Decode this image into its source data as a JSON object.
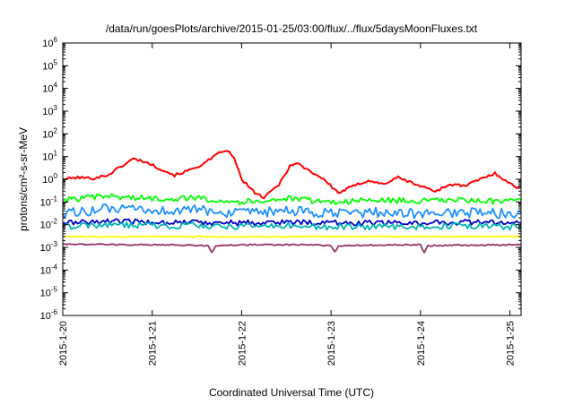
{
  "chart_data": {
    "type": "line",
    "title": "/data/run/goesPlots/archive/2015-01-25/03:00/flux/../flux/5daysMoonFluxes.txt",
    "xlabel": "Coordinated Universal Time (UTC)",
    "ylabel": "protons/cm²-s-sr-MeV",
    "yscale": "log",
    "ylim": [
      1e-06,
      1000000.0
    ],
    "xlim": [
      "2015-01-20T00:00",
      "2015-01-25T03:00"
    ],
    "grid": false,
    "legend": "none",
    "y_tick_labels": [
      {
        "value": 1e-06,
        "base": "10",
        "exp": "-6"
      },
      {
        "value": 1e-05,
        "base": "10",
        "exp": "-5"
      },
      {
        "value": 0.0001,
        "base": "10",
        "exp": "-4"
      },
      {
        "value": 0.001,
        "base": "10",
        "exp": "-3"
      },
      {
        "value": 0.01,
        "base": "10",
        "exp": "-2"
      },
      {
        "value": 0.1,
        "base": "10",
        "exp": "-1"
      },
      {
        "value": 1,
        "base": "10",
        "exp": "0"
      },
      {
        "value": 10,
        "base": "10",
        "exp": "1"
      },
      {
        "value": 100,
        "base": "10",
        "exp": "2"
      },
      {
        "value": 1000,
        "base": "10",
        "exp": "3"
      },
      {
        "value": 10000,
        "base": "10",
        "exp": "4"
      },
      {
        "value": 100000,
        "base": "10",
        "exp": "5"
      },
      {
        "value": 1000000,
        "base": "10",
        "exp": "6"
      }
    ],
    "x_tick_labels": [
      {
        "value": "2015-01-20T00:00",
        "label": "2015-1-20"
      },
      {
        "value": "2015-01-21T00:00",
        "label": "2015-1-21"
      },
      {
        "value": "2015-01-22T00:00",
        "label": "2015-1-22"
      },
      {
        "value": "2015-01-23T00:00",
        "label": "2015-1-23"
      },
      {
        "value": "2015-01-24T00:00",
        "label": "2015-1-24"
      },
      {
        "value": "2015-01-25T00:00",
        "label": "2015-1-25"
      }
    ],
    "series": [
      {
        "color": "#ff0000",
        "points": [
          [
            "2015-01-20T00:00",
            1.0
          ],
          [
            "2015-01-20T04:00",
            1.2
          ],
          [
            "2015-01-20T08:00",
            1.1
          ],
          [
            "2015-01-20T12:00",
            1.5
          ],
          [
            "2015-01-20T16:00",
            4.0
          ],
          [
            "2015-01-20T19:00",
            8.0
          ],
          [
            "2015-01-20T22:00",
            6.0
          ],
          [
            "2015-01-21T02:00",
            3.0
          ],
          [
            "2015-01-21T06:00",
            1.5
          ],
          [
            "2015-01-21T10:00",
            2.5
          ],
          [
            "2015-01-21T14:00",
            5.0
          ],
          [
            "2015-01-21T18:00",
            14.0
          ],
          [
            "2015-01-21T20:00",
            20.0
          ],
          [
            "2015-01-21T22:00",
            8.0
          ],
          [
            "2015-01-22T00:00",
            1.0
          ],
          [
            "2015-01-22T03:00",
            0.3
          ],
          [
            "2015-01-22T06:00",
            0.15
          ],
          [
            "2015-01-22T10:00",
            0.6
          ],
          [
            "2015-01-22T13:00",
            4.0
          ],
          [
            "2015-01-22T15:00",
            5.0
          ],
          [
            "2015-01-22T18:00",
            2.5
          ],
          [
            "2015-01-22T22:00",
            1.0
          ],
          [
            "2015-01-23T02:00",
            0.25
          ],
          [
            "2015-01-23T06:00",
            0.5
          ],
          [
            "2015-01-23T10:00",
            0.9
          ],
          [
            "2015-01-23T14:00",
            0.6
          ],
          [
            "2015-01-23T18:00",
            1.2
          ],
          [
            "2015-01-24T00:00",
            0.5
          ],
          [
            "2015-01-24T04:00",
            0.3
          ],
          [
            "2015-01-24T08:00",
            0.6
          ],
          [
            "2015-01-24T12:00",
            0.5
          ],
          [
            "2015-01-24T16:00",
            1.0
          ],
          [
            "2015-01-24T20:00",
            1.8
          ],
          [
            "2015-01-25T00:00",
            0.7
          ],
          [
            "2015-01-25T01:30",
            0.4
          ],
          [
            "2015-01-25T03:00",
            0.5
          ]
        ]
      },
      {
        "color": "#00ff00",
        "points": [
          [
            "2015-01-20T00:00",
            0.12
          ],
          [
            "2015-01-20T12:00",
            0.18
          ],
          [
            "2015-01-21T00:00",
            0.14
          ],
          [
            "2015-01-21T12:00",
            0.15
          ],
          [
            "2015-01-22T00:00",
            0.1
          ],
          [
            "2015-01-22T12:00",
            0.14
          ],
          [
            "2015-01-23T00:00",
            0.1
          ],
          [
            "2015-01-23T12:00",
            0.12
          ],
          [
            "2015-01-24T00:00",
            0.11
          ],
          [
            "2015-01-24T12:00",
            0.12
          ],
          [
            "2015-01-25T00:00",
            0.1
          ],
          [
            "2015-01-25T03:00",
            0.12
          ]
        ]
      },
      {
        "color": "#1e90ff",
        "points": [
          [
            "2015-01-20T00:00",
            0.03
          ],
          [
            "2015-01-20T12:00",
            0.05
          ],
          [
            "2015-01-21T00:00",
            0.04
          ],
          [
            "2015-01-21T12:00",
            0.045
          ],
          [
            "2015-01-22T00:00",
            0.03
          ],
          [
            "2015-01-22T12:00",
            0.04
          ],
          [
            "2015-01-23T00:00",
            0.03
          ],
          [
            "2015-01-23T12:00",
            0.035
          ],
          [
            "2015-01-24T00:00",
            0.03
          ],
          [
            "2015-01-24T12:00",
            0.035
          ],
          [
            "2015-01-25T00:00",
            0.03
          ],
          [
            "2015-01-25T03:00",
            0.035
          ]
        ]
      },
      {
        "color": "#0000cd",
        "points": [
          [
            "2015-01-20T00:00",
            0.012
          ],
          [
            "2015-01-20T12:00",
            0.014
          ],
          [
            "2015-01-21T00:00",
            0.013
          ],
          [
            "2015-01-21T12:00",
            0.013
          ],
          [
            "2015-01-22T00:00",
            0.012
          ],
          [
            "2015-01-22T12:00",
            0.013
          ],
          [
            "2015-01-23T00:00",
            0.012
          ],
          [
            "2015-01-23T12:00",
            0.012
          ],
          [
            "2015-01-24T00:00",
            0.012
          ],
          [
            "2015-01-24T12:00",
            0.013
          ],
          [
            "2015-01-25T00:00",
            0.012
          ],
          [
            "2015-01-25T03:00",
            0.012
          ]
        ]
      },
      {
        "color": "#00b4b4",
        "points": [
          [
            "2015-01-20T00:00",
            0.008
          ],
          [
            "2015-01-20T12:00",
            0.01
          ],
          [
            "2015-01-21T00:00",
            0.009
          ],
          [
            "2015-01-21T12:00",
            0.009
          ],
          [
            "2015-01-22T00:00",
            0.008
          ],
          [
            "2015-01-22T12:00",
            0.009
          ],
          [
            "2015-01-23T00:00",
            0.008
          ],
          [
            "2015-01-23T12:00",
            0.008
          ],
          [
            "2015-01-24T00:00",
            0.008
          ],
          [
            "2015-01-24T12:00",
            0.009
          ],
          [
            "2015-01-25T00:00",
            0.008
          ],
          [
            "2015-01-25T03:00",
            0.008
          ]
        ]
      },
      {
        "color": "#ffff00",
        "points": [
          [
            "2015-01-20T00:00",
            0.003
          ],
          [
            "2015-01-21T00:00",
            0.003
          ],
          [
            "2015-01-22T00:00",
            0.0029
          ],
          [
            "2015-01-23T00:00",
            0.003
          ],
          [
            "2015-01-24T00:00",
            0.003
          ],
          [
            "2015-01-25T03:00",
            0.003
          ]
        ]
      },
      {
        "color": "#993366",
        "points": [
          [
            "2015-01-20T00:00",
            0.0014
          ],
          [
            "2015-01-20T12:00",
            0.0013
          ],
          [
            "2015-01-20T18:00",
            0.0013
          ],
          [
            "2015-01-21T00:00",
            0.0013
          ],
          [
            "2015-01-21T15:00",
            0.0012
          ],
          [
            "2015-01-21T16:00",
            0.0006
          ],
          [
            "2015-01-21T17:00",
            0.0012
          ],
          [
            "2015-01-22T00:00",
            0.0013
          ],
          [
            "2015-01-22T18:00",
            0.0013
          ],
          [
            "2015-01-23T00:00",
            0.0012
          ],
          [
            "2015-01-23T01:00",
            0.0006
          ],
          [
            "2015-01-23T02:00",
            0.0012
          ],
          [
            "2015-01-24T00:00",
            0.0013
          ],
          [
            "2015-01-24T01:00",
            0.0006
          ],
          [
            "2015-01-24T02:00",
            0.0012
          ],
          [
            "2015-01-25T00:00",
            0.0013
          ],
          [
            "2015-01-25T03:00",
            0.0013
          ]
        ]
      }
    ]
  }
}
